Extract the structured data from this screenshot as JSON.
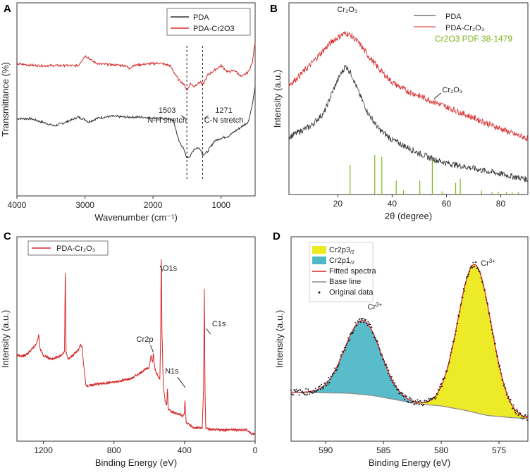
{
  "figure": {
    "panels": [
      "A",
      "B",
      "C",
      "D"
    ]
  },
  "chart_data": [
    {
      "panel": "A",
      "type": "line",
      "title": "",
      "xlabel": "Wavenumber (cm⁻¹)",
      "ylabel": "Transmittance (%)",
      "xlim": [
        4000,
        500
      ],
      "x_ticks": [
        4000,
        3000,
        2000,
        1000
      ],
      "legend": [
        "PDA",
        "PDA-Cr2O3"
      ],
      "series": [
        {
          "name": "PDA",
          "color": "#333333",
          "x": [
            4000,
            3800,
            3600,
            3450,
            3300,
            3100,
            3000,
            2950,
            2800,
            2600,
            2400,
            2200,
            2000,
            1800,
            1700,
            1620,
            1560,
            1520,
            1500,
            1450,
            1400,
            1350,
            1300,
            1271,
            1200,
            1100,
            1000,
            900,
            800,
            700,
            600,
            540,
            500
          ],
          "y": [
            4.8,
            4.8,
            4.55,
            4.35,
            4.55,
            4.9,
            4.75,
            4.6,
            4.85,
            4.95,
            4.9,
            4.9,
            4.85,
            4.8,
            4.7,
            3.4,
            3.0,
            2.55,
            2.4,
            2.5,
            2.9,
            3.0,
            2.9,
            2.55,
            2.75,
            3.4,
            3.6,
            3.7,
            4.0,
            4.3,
            4.6,
            5.7,
            6.8
          ]
        },
        {
          "name": "PDA-Cr2O3",
          "color": "#d62728",
          "x": [
            4000,
            3700,
            3400,
            3100,
            3000,
            2950,
            2900,
            2800,
            2600,
            2400,
            2350,
            2300,
            2100,
            1900,
            1750,
            1680,
            1620,
            1560,
            1520,
            1500,
            1450,
            1400,
            1300,
            1271,
            1200,
            1100,
            1000,
            900,
            800,
            700,
            600,
            540,
            500
          ],
          "y": [
            8.2,
            8.1,
            8.1,
            8.1,
            8.7,
            8.6,
            8.4,
            8.2,
            8.15,
            8.1,
            7.9,
            8.1,
            8.2,
            8.25,
            8.1,
            7.6,
            7.2,
            7.0,
            6.75,
            6.55,
            7.0,
            6.8,
            7.1,
            6.85,
            7.5,
            7.8,
            8.1,
            7.7,
            7.8,
            7.4,
            7.7,
            8.3,
            9.6
          ]
        }
      ],
      "annotations": [
        {
          "lines": [
            "1503",
            "N-H stretch"
          ],
          "x": 1503
        },
        {
          "lines": [
            "1271",
            "C-N stretch"
          ],
          "x": 1271
        }
      ]
    },
    {
      "panel": "B",
      "type": "line",
      "title": "",
      "xlabel": "2θ (degree)",
      "ylabel": "Intensity (a.u.)",
      "xlim": [
        2,
        90
      ],
      "x_ticks": [
        20,
        40,
        60,
        80
      ],
      "legend": [
        "PDA",
        "PDA-Cr₂O₃",
        "Cr2O3  PDF 38-1479"
      ],
      "series": [
        {
          "name": "PDA",
          "color": "#333333",
          "x": [
            2,
            5,
            10,
            15,
            18,
            21,
            23,
            25,
            28,
            31,
            35,
            40,
            45,
            50,
            55,
            60,
            65,
            70,
            75,
            80,
            85,
            90
          ],
          "y": [
            4.2,
            4.5,
            5.0,
            6.0,
            7.5,
            8.8,
            9.4,
            8.8,
            7.3,
            6.0,
            4.8,
            4.0,
            3.5,
            3.0,
            2.6,
            2.3,
            2.1,
            1.9,
            1.7,
            1.5,
            1.3,
            1.1
          ]
        },
        {
          "name": "PDA-Cr₂O₃",
          "color": "#d62728",
          "x": [
            2,
            5,
            10,
            15,
            18,
            21,
            23,
            25,
            28,
            31,
            35,
            40,
            45,
            50,
            55,
            60,
            65,
            70,
            75,
            80,
            85,
            90
          ],
          "y": [
            8.0,
            8.5,
            9.5,
            10.6,
            11.2,
            11.6,
            11.8,
            11.6,
            11.0,
            10.2,
            9.2,
            8.2,
            7.6,
            7.2,
            6.8,
            6.4,
            6.0,
            5.6,
            5.2,
            4.8,
            4.4,
            4.1
          ]
        }
      ],
      "reference_lines": {
        "name": "Cr2O3  PDF 38-1479",
        "color": "#7cb518",
        "x": [
          24.5,
          33.6,
          36.2,
          41.5,
          44.2,
          50.2,
          54.8,
          58.4,
          63.4,
          65.1,
          72.9,
          76.8,
          79.1,
          82.1,
          84.2,
          86.5
        ],
        "h": [
          0.75,
          1.0,
          0.95,
          0.35,
          0.1,
          0.35,
          0.9,
          0.08,
          0.3,
          0.4,
          0.1,
          0.06,
          0.07,
          0.06,
          0.05,
          0.06
        ]
      },
      "annotations": [
        {
          "text": "Cr₂O₃",
          "x": 23
        },
        {
          "text": "Cr₂O₃",
          "x": 57
        }
      ]
    },
    {
      "panel": "C",
      "type": "line",
      "title": "",
      "xlabel": "Binding Energy (eV)",
      "ylabel": "Intensity (a.u.)",
      "xlim": [
        1350,
        0
      ],
      "x_ticks": [
        1200,
        800,
        400,
        0
      ],
      "legend": [
        "PDA-Cr₂O₃"
      ],
      "series": [
        {
          "name": "PDA-Cr₂O₃",
          "color": "#d62728",
          "x": [
            1350,
            1300,
            1240,
            1225,
            1220,
            1200,
            1150,
            1100,
            1080,
            1076,
            1072,
            1060,
            1000,
            990,
            980,
            975,
            960,
            950,
            900,
            800,
            700,
            650,
            600,
            590,
            580,
            577,
            570,
            560,
            540,
            535,
            532,
            528,
            520,
            510,
            500,
            497,
            493,
            480,
            460,
            420,
            410,
            400,
            398,
            395,
            390,
            350,
            300,
            292,
            288,
            284,
            280,
            250,
            200,
            150,
            100,
            50,
            20,
            0
          ],
          "y": [
            0.42,
            0.42,
            0.48,
            0.53,
            0.46,
            0.42,
            0.4,
            0.42,
            0.44,
            0.92,
            0.44,
            0.4,
            0.45,
            0.48,
            0.46,
            0.4,
            0.27,
            0.26,
            0.27,
            0.28,
            0.3,
            0.33,
            0.36,
            0.42,
            0.38,
            0.44,
            0.36,
            0.33,
            0.3,
            0.55,
            1.0,
            0.55,
            0.25,
            0.18,
            0.16,
            0.26,
            0.14,
            0.13,
            0.12,
            0.11,
            0.1,
            0.12,
            0.2,
            0.12,
            0.07,
            0.04,
            0.04,
            0.25,
            0.77,
            0.25,
            0.04,
            0.03,
            0.03,
            0.03,
            0.03,
            0.03,
            0.01,
            0.01
          ]
        }
      ],
      "annotations": [
        {
          "text": "O1s",
          "x": 531
        },
        {
          "text": "Cr2p",
          "x": 577
        },
        {
          "text": "N1s",
          "x": 400
        },
        {
          "text": "C1s",
          "x": 285
        }
      ]
    },
    {
      "panel": "D",
      "type": "area",
      "title": "",
      "xlabel": "Binding Energy (eV)",
      "ylabel": "Intensity (a.u.)",
      "xlim": [
        593,
        572.5
      ],
      "x_ticks": [
        590,
        585,
        580,
        575
      ],
      "legend": [
        "Cr2p3/2",
        "Cr2p1/2",
        "Fitted spectra",
        "Base line",
        "Original data"
      ],
      "baseline": {
        "x": [
          593,
          588,
          586,
          584,
          582,
          580,
          578,
          576,
          574,
          572.5
        ],
        "y": [
          0.25,
          0.24,
          0.22,
          0.18,
          0.14,
          0.12,
          0.08,
          0.03,
          0.01,
          0.0
        ]
      },
      "peaks": [
        {
          "name": "Cr2p1/2",
          "color": "#4fb8c8",
          "center": 586.8,
          "sigma": 1.55,
          "height": 0.7
        },
        {
          "name": "Cr2p3/2",
          "color": "#ece91c",
          "center": 577.1,
          "sigma": 1.45,
          "height": 1.4
        }
      ],
      "fit_color": "#d62728",
      "baseline_color": "#888888",
      "annotations": [
        {
          "text": "Cr",
          "sup": "3+",
          "x": 586.6
        },
        {
          "text": "Cr",
          "sup": "3+",
          "x": 576.8
        }
      ]
    }
  ]
}
